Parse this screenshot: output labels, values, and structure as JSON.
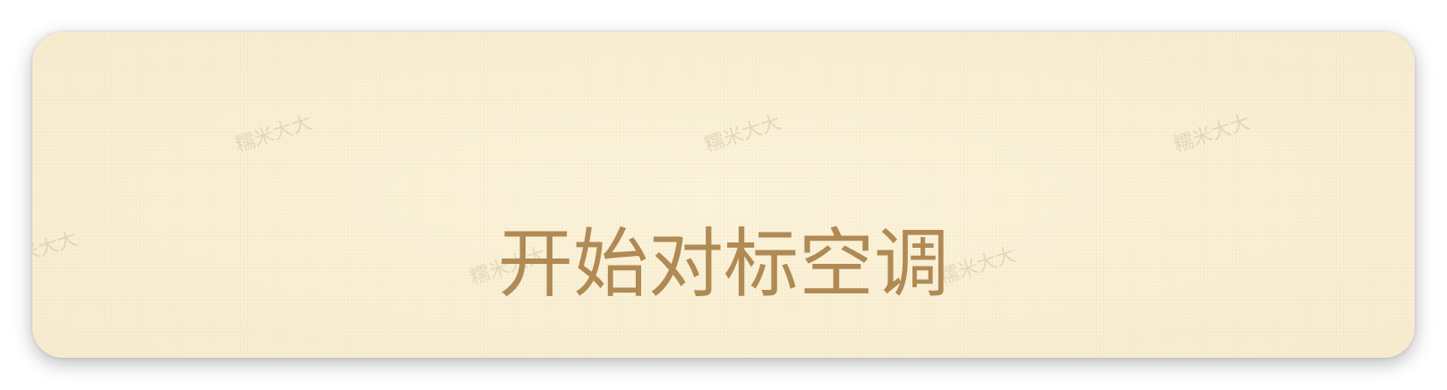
{
  "button": {
    "label": "开始对标空调"
  },
  "watermark": {
    "text": "糯米大大"
  },
  "colors": {
    "card_background": "#f8eed4",
    "label_color": "#b08a54"
  }
}
